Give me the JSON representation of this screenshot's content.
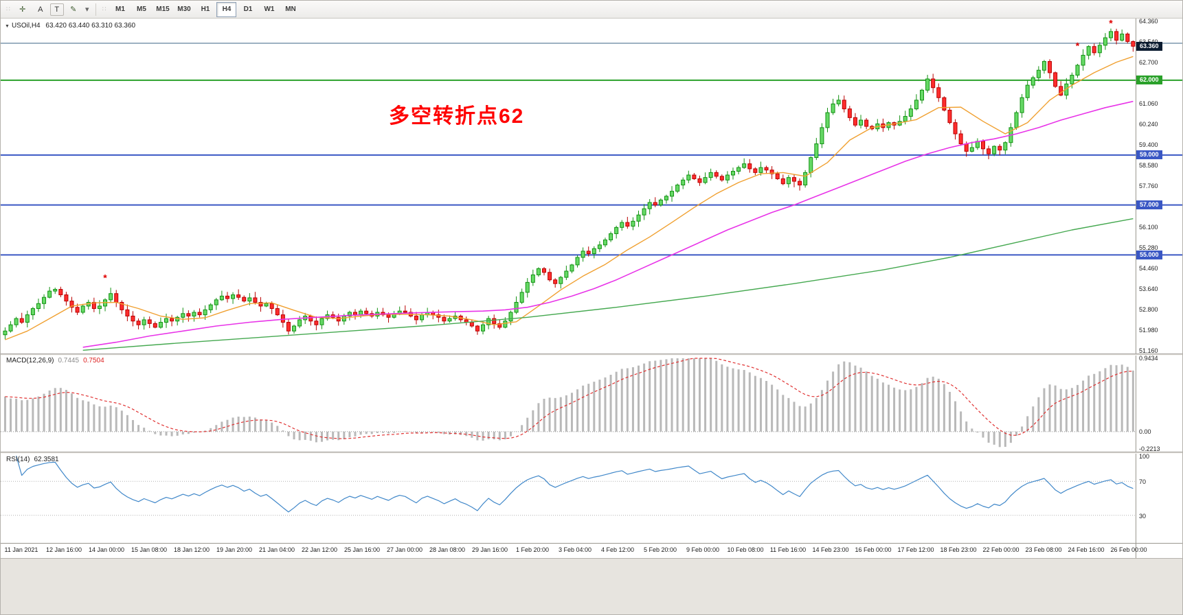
{
  "toolbar": {
    "tools": [
      {
        "id": "crosshair-tool",
        "glyph": "✛"
      },
      {
        "id": "text-tool",
        "glyph": "A"
      },
      {
        "id": "text-label-tool",
        "glyph": "T"
      },
      {
        "id": "pen-tool",
        "glyph": "✎"
      },
      {
        "id": "pen-dropdown",
        "glyph": "▾"
      }
    ],
    "timeframes": [
      "M1",
      "M5",
      "M15",
      "M30",
      "H1",
      "H4",
      "D1",
      "W1",
      "MN"
    ],
    "active_timeframe": "H4"
  },
  "chart": {
    "dropdown_glyph": "▼",
    "symbol_label": "USOil,H4",
    "ohlc": "63.420 63.440 63.310 63.360",
    "annotation": "多空转折点62",
    "annotation_color": "#ff0000"
  },
  "price_axis": {
    "min": 51.16,
    "max": 64.36,
    "labels": [
      "64.360",
      "63.540",
      "62.700",
      "61.060",
      "60.240",
      "59.400",
      "58.580",
      "57.760",
      "56.100",
      "55.280",
      "54.460",
      "53.640",
      "52.800",
      "51.980",
      "51.160"
    ],
    "badges": [
      {
        "value": "63.360",
        "price": 63.36,
        "color": "#0c1c30"
      },
      {
        "value": "62.000",
        "price": 62.0,
        "color": "#2aa12a"
      },
      {
        "value": "59.000",
        "price": 59.0,
        "color": "#3a57c4"
      },
      {
        "value": "57.000",
        "price": 57.0,
        "color": "#3a57c4"
      },
      {
        "value": "55.000",
        "price": 55.0,
        "color": "#3a57c4"
      }
    ]
  },
  "chart_data": {
    "type": "candlestick",
    "symbol": "USOil",
    "timeframe": "H4",
    "first_open": 51.8,
    "closes": [
      51.95,
      52.2,
      52.45,
      52.3,
      52.6,
      52.85,
      53.05,
      53.3,
      53.55,
      53.62,
      53.4,
      53.15,
      52.9,
      52.7,
      52.95,
      53.1,
      52.85,
      52.95,
      53.2,
      53.45,
      53.1,
      52.8,
      52.55,
      52.35,
      52.2,
      52.4,
      52.25,
      52.1,
      52.3,
      52.45,
      52.35,
      52.5,
      52.65,
      52.55,
      52.7,
      52.6,
      52.8,
      53.0,
      53.2,
      53.35,
      53.25,
      53.4,
      53.3,
      53.15,
      53.28,
      53.1,
      52.95,
      53.05,
      52.85,
      52.6,
      52.3,
      51.95,
      52.15,
      52.4,
      52.55,
      52.35,
      52.2,
      52.45,
      52.6,
      52.5,
      52.35,
      52.55,
      52.7,
      52.6,
      52.75,
      52.65,
      52.55,
      52.7,
      52.6,
      52.5,
      52.65,
      52.75,
      52.7,
      52.55,
      52.4,
      52.6,
      52.7,
      52.6,
      52.5,
      52.35,
      52.45,
      52.55,
      52.4,
      52.3,
      52.15,
      51.95,
      52.2,
      52.45,
      52.25,
      52.1,
      52.35,
      52.7,
      53.1,
      53.5,
      53.9,
      54.2,
      54.45,
      54.3,
      54.0,
      53.85,
      54.1,
      54.35,
      54.6,
      54.9,
      55.15,
      55.05,
      55.25,
      55.4,
      55.6,
      55.85,
      56.1,
      56.3,
      56.15,
      56.35,
      56.6,
      56.85,
      57.1,
      57.0,
      57.2,
      57.35,
      57.55,
      57.8,
      58.0,
      58.2,
      58.05,
      57.9,
      58.1,
      58.3,
      58.15,
      58.0,
      58.2,
      58.35,
      58.5,
      58.65,
      58.45,
      58.3,
      58.5,
      58.4,
      58.25,
      58.05,
      57.85,
      58.1,
      57.95,
      57.8,
      58.3,
      58.9,
      59.45,
      60.1,
      60.7,
      61.05,
      61.2,
      60.85,
      60.5,
      60.2,
      60.4,
      60.15,
      60.05,
      60.25,
      60.1,
      60.3,
      60.2,
      60.35,
      60.55,
      60.85,
      61.2,
      61.6,
      62.05,
      61.7,
      61.3,
      60.8,
      60.3,
      59.85,
      59.45,
      59.15,
      59.3,
      59.55,
      59.25,
      59.05,
      59.35,
      59.2,
      59.5,
      60.1,
      60.7,
      61.3,
      61.8,
      62.1,
      62.4,
      62.75,
      62.3,
      61.75,
      61.4,
      61.85,
      62.2,
      62.6,
      63.0,
      63.35,
      63.1,
      63.4,
      63.7,
      63.95,
      63.6,
      63.85,
      63.55,
      63.36
    ],
    "up_color": "#119111",
    "up_fill": "#66d966",
    "down_color": "#b80000",
    "down_fill": "#ff2d2d",
    "horizontal_lines": [
      {
        "price": 63.48,
        "color": "#7c97ad",
        "width": 1.5
      },
      {
        "price": 62.0,
        "color": "#2aa12a",
        "width": 2
      },
      {
        "price": 59.0,
        "color": "#3a57c4",
        "width": 2
      },
      {
        "price": 57.0,
        "color": "#3a57c4",
        "width": 2
      },
      {
        "price": 55.0,
        "color": "#3a57c4",
        "width": 2
      }
    ],
    "moving_averages": [
      {
        "name": "fast-ma",
        "color": "#f0a030",
        "width": 1.4,
        "anchors": [
          [
            0,
            51.6
          ],
          [
            4,
            51.95
          ],
          [
            8,
            52.45
          ],
          [
            12,
            52.95
          ],
          [
            16,
            53.08
          ],
          [
            20,
            53.1
          ],
          [
            24,
            52.85
          ],
          [
            28,
            52.55
          ],
          [
            32,
            52.42
          ],
          [
            36,
            52.48
          ],
          [
            40,
            52.78
          ],
          [
            44,
            53.05
          ],
          [
            48,
            53.08
          ],
          [
            52,
            52.78
          ],
          [
            56,
            52.5
          ],
          [
            60,
            52.45
          ],
          [
            64,
            52.55
          ],
          [
            68,
            52.62
          ],
          [
            72,
            52.62
          ],
          [
            76,
            52.6
          ],
          [
            80,
            52.55
          ],
          [
            84,
            52.4
          ],
          [
            88,
            52.2
          ],
          [
            92,
            52.32
          ],
          [
            96,
            52.95
          ],
          [
            100,
            53.6
          ],
          [
            104,
            54.15
          ],
          [
            108,
            54.62
          ],
          [
            112,
            55.2
          ],
          [
            116,
            55.72
          ],
          [
            120,
            56.3
          ],
          [
            124,
            56.9
          ],
          [
            128,
            57.45
          ],
          [
            132,
            57.9
          ],
          [
            136,
            58.25
          ],
          [
            140,
            58.3
          ],
          [
            144,
            58.15
          ],
          [
            148,
            58.7
          ],
          [
            152,
            59.6
          ],
          [
            156,
            60.1
          ],
          [
            160,
            60.25
          ],
          [
            164,
            60.42
          ],
          [
            168,
            60.9
          ],
          [
            172,
            60.92
          ],
          [
            176,
            60.35
          ],
          [
            180,
            59.85
          ],
          [
            184,
            60.3
          ],
          [
            188,
            61.2
          ],
          [
            192,
            61.8
          ],
          [
            196,
            62.3
          ],
          [
            200,
            62.72
          ],
          [
            203,
            62.95
          ]
        ]
      },
      {
        "name": "mid-ma",
        "color": "#e833e8",
        "width": 1.6,
        "anchors": [
          [
            14,
            51.3
          ],
          [
            20,
            51.5
          ],
          [
            26,
            51.75
          ],
          [
            32,
            51.95
          ],
          [
            38,
            52.15
          ],
          [
            44,
            52.3
          ],
          [
            50,
            52.42
          ],
          [
            56,
            52.5
          ],
          [
            62,
            52.58
          ],
          [
            68,
            52.63
          ],
          [
            74,
            52.68
          ],
          [
            80,
            52.72
          ],
          [
            86,
            52.75
          ],
          [
            90,
            52.8
          ],
          [
            94,
            52.9
          ],
          [
            98,
            53.1
          ],
          [
            102,
            53.35
          ],
          [
            106,
            53.65
          ],
          [
            110,
            54.0
          ],
          [
            114,
            54.4
          ],
          [
            118,
            54.8
          ],
          [
            122,
            55.2
          ],
          [
            126,
            55.6
          ],
          [
            130,
            56.0
          ],
          [
            134,
            56.35
          ],
          [
            138,
            56.7
          ],
          [
            142,
            57.0
          ],
          [
            146,
            57.35
          ],
          [
            150,
            57.7
          ],
          [
            154,
            58.05
          ],
          [
            158,
            58.4
          ],
          [
            162,
            58.75
          ],
          [
            166,
            59.05
          ],
          [
            170,
            59.3
          ],
          [
            174,
            59.5
          ],
          [
            178,
            59.65
          ],
          [
            182,
            59.85
          ],
          [
            186,
            60.1
          ],
          [
            190,
            60.4
          ],
          [
            194,
            60.65
          ],
          [
            198,
            60.9
          ],
          [
            203,
            61.15
          ]
        ]
      },
      {
        "name": "slow-ma",
        "color": "#44a84f",
        "width": 1.4,
        "anchors": [
          [
            14,
            51.18
          ],
          [
            30,
            51.45
          ],
          [
            46,
            51.7
          ],
          [
            62,
            51.95
          ],
          [
            78,
            52.2
          ],
          [
            94,
            52.5
          ],
          [
            110,
            52.9
          ],
          [
            126,
            53.35
          ],
          [
            142,
            53.85
          ],
          [
            158,
            54.4
          ],
          [
            170,
            54.9
          ],
          [
            182,
            55.5
          ],
          [
            192,
            56.0
          ],
          [
            203,
            56.45
          ]
        ]
      }
    ],
    "markers": [
      [
        18,
        53.95
      ],
      [
        193,
        63.25
      ],
      [
        199,
        64.15
      ]
    ],
    "marker_color": "#e00000"
  },
  "macd": {
    "label": "MACD(12,26,9)",
    "value_main": "0.7445",
    "value_signal": "0.7504",
    "axis_labels": [
      "0.9434",
      "0.00",
      "-0.2213"
    ],
    "axis_max": 0.9434,
    "axis_min": -0.2213,
    "histogram_color": "#b9b9b9",
    "signal_color": "#e03131"
  },
  "rsi": {
    "label": "RSI(14)",
    "value": "62.3581",
    "period": 14,
    "axis_labels": [
      "100",
      "70",
      "30"
    ],
    "levels": [
      70,
      30
    ],
    "line_color": "#3f87c9",
    "level_color": "#b0b0b0"
  },
  "time_axis": {
    "labels": [
      "11 Jan 2021",
      "12 Jan 16:00",
      "14 Jan 00:00",
      "15 Jan 08:00",
      "18 Jan 12:00",
      "19 Jan 20:00",
      "21 Jan 04:00",
      "22 Jan 12:00",
      "25 Jan 16:00",
      "27 Jan 00:00",
      "28 Jan 08:00",
      "29 Jan 16:00",
      "1 Feb 20:00",
      "3 Feb 04:00",
      "4 Feb 12:00",
      "5 Feb 20:00",
      "9 Feb 00:00",
      "10 Feb 08:00",
      "11 Feb 16:00",
      "14 Feb 23:00",
      "16 Feb 00:00",
      "17 Feb 12:00",
      "18 Feb 23:00",
      "22 Feb 00:00",
      "23 Feb 08:00",
      "24 Feb 16:00",
      "26 Feb 00:00"
    ]
  }
}
